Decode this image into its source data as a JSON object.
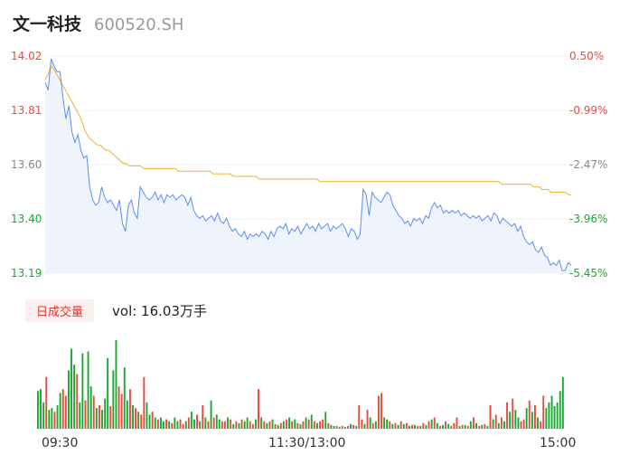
{
  "header": {
    "name": "文一科技",
    "code": "600520.SH"
  },
  "volume_panel": {
    "tab_label": "日成交量",
    "vol_text": "vol: 16.03万手"
  },
  "colors": {
    "price_line": "#5b8ff0",
    "avg_line": "#f0b22c",
    "up": "#e84b3c",
    "down": "#1aa830",
    "area": "#eef3fc",
    "grid": "#e6e6e6"
  },
  "chart_data": [
    {
      "type": "line",
      "y_axis_left": [
        "14.02",
        "13.81",
        "13.60",
        "13.40",
        "13.19"
      ],
      "y_axis_right": [
        "0.50%",
        "-0.99%",
        "-2.47%",
        "-3.96%",
        "-5.45%"
      ],
      "ylim": [
        13.19,
        14.02
      ],
      "x_ticks": [
        "09:30",
        "11:30/13:00",
        "15:00"
      ],
      "series": [
        {
          "values": [
            13.92,
            13.89,
            14.01,
            13.98,
            13.96,
            13.96,
            13.86,
            13.78,
            13.83,
            13.73,
            13.69,
            13.72,
            13.66,
            13.63,
            13.64,
            13.52,
            13.47,
            13.45,
            13.46,
            13.52,
            13.48,
            13.46,
            13.47,
            13.45,
            13.43,
            13.47,
            13.38,
            13.35,
            13.45,
            13.47,
            13.42,
            13.4,
            13.52,
            13.5,
            13.48,
            13.47,
            13.48,
            13.5,
            13.47,
            13.49,
            13.46,
            13.49,
            13.48,
            13.49,
            13.47,
            13.48,
            13.49,
            13.48,
            13.45,
            13.48,
            13.43,
            13.41,
            13.4,
            13.41,
            13.39,
            13.4,
            13.41,
            13.39,
            13.42,
            13.39,
            13.38,
            13.4,
            13.37,
            13.35,
            13.36,
            13.34,
            13.33,
            13.35,
            13.32,
            13.34,
            13.33,
            13.34,
            13.33,
            13.35,
            13.34,
            13.32,
            13.35,
            13.33,
            13.36,
            13.37,
            13.36,
            13.38,
            13.34,
            13.36,
            13.35,
            13.37,
            13.34,
            13.36,
            13.38,
            13.36,
            13.37,
            13.35,
            13.38,
            13.36,
            13.37,
            13.38,
            13.35,
            13.37,
            13.36,
            13.37,
            13.38,
            13.36,
            13.33,
            13.36,
            13.35,
            13.32,
            13.34,
            13.51,
            13.49,
            13.41,
            13.5,
            13.48,
            13.47,
            13.46,
            13.48,
            13.5,
            13.49,
            13.45,
            13.43,
            13.41,
            13.4,
            13.38,
            13.39,
            13.37,
            13.4,
            13.39,
            13.4,
            13.38,
            13.41,
            13.4,
            13.44,
            13.46,
            13.44,
            13.45,
            13.42,
            13.43,
            13.42,
            13.43,
            13.42,
            13.43,
            13.41,
            13.42,
            13.41,
            13.4,
            13.41,
            13.4,
            13.41,
            13.39,
            13.4,
            13.41,
            13.39,
            13.42,
            13.41,
            13.38,
            13.4,
            13.39,
            13.38,
            13.37,
            13.38,
            13.35,
            13.37,
            13.33,
            13.31,
            13.3,
            13.31,
            13.28,
            13.27,
            13.29,
            13.26,
            13.25,
            13.22,
            13.23,
            13.22,
            13.24,
            13.2,
            13.2,
            13.23,
            13.22
          ]
        },
        {
          "values": [
            13.93,
            13.95,
            13.98,
            13.97,
            13.95,
            13.93,
            13.91,
            13.89,
            13.87,
            13.85,
            13.83,
            13.81,
            13.79,
            13.76,
            13.73,
            13.71,
            13.7,
            13.69,
            13.68,
            13.68,
            13.67,
            13.66,
            13.66,
            13.65,
            13.64,
            13.63,
            13.62,
            13.61,
            13.61,
            13.6,
            13.6,
            13.6,
            13.6,
            13.6,
            13.59,
            13.59,
            13.59,
            13.59,
            13.59,
            13.59,
            13.59,
            13.59,
            13.59,
            13.59,
            13.59,
            13.59,
            13.58,
            13.58,
            13.58,
            13.58,
            13.58,
            13.58,
            13.58,
            13.58,
            13.58,
            13.58,
            13.58,
            13.58,
            13.57,
            13.57,
            13.57,
            13.57,
            13.57,
            13.57,
            13.57,
            13.56,
            13.56,
            13.56,
            13.56,
            13.56,
            13.56,
            13.56,
            13.56,
            13.56,
            13.55,
            13.55,
            13.55,
            13.55,
            13.55,
            13.55,
            13.55,
            13.55,
            13.55,
            13.55,
            13.55,
            13.55,
            13.55,
            13.55,
            13.55,
            13.55,
            13.55,
            13.55,
            13.55,
            13.55,
            13.55,
            13.54,
            13.54,
            13.54,
            13.54,
            13.54,
            13.54,
            13.54,
            13.54,
            13.54,
            13.54,
            13.54,
            13.54,
            13.54,
            13.54,
            13.54,
            13.54,
            13.54,
            13.54,
            13.54,
            13.54,
            13.54,
            13.54,
            13.54,
            13.54,
            13.54,
            13.54,
            13.54,
            13.54,
            13.54,
            13.54,
            13.54,
            13.54,
            13.54,
            13.54,
            13.54,
            13.54,
            13.54,
            13.54,
            13.54,
            13.54,
            13.54,
            13.54,
            13.54,
            13.54,
            13.54,
            13.54,
            13.54,
            13.54,
            13.54,
            13.54,
            13.54,
            13.54,
            13.54,
            13.54,
            13.54,
            13.54,
            13.54,
            13.54,
            13.54,
            13.54,
            13.54,
            13.54,
            13.54,
            13.53,
            13.53,
            13.53,
            13.53,
            13.53,
            13.53,
            13.53,
            13.53,
            13.53,
            13.53,
            13.53,
            13.52,
            13.52,
            13.52,
            13.51,
            13.51,
            13.51,
            13.5,
            13.5,
            13.5,
            13.5,
            13.5,
            13.5,
            13.49,
            13.49
          ]
        }
      ]
    },
    {
      "type": "bar",
      "x_ticks": [
        "09:30",
        "11:30/13:00",
        "15:00"
      ],
      "values": [
        40,
        42,
        28,
        55,
        20,
        22,
        18,
        25,
        38,
        42,
        35,
        62,
        85,
        68,
        58,
        28,
        80,
        30,
        82,
        45,
        35,
        22,
        25,
        20,
        32,
        75,
        24,
        62,
        94,
        45,
        37,
        65,
        30,
        42,
        25,
        22,
        18,
        15,
        55,
        28,
        15,
        18,
        12,
        10,
        12,
        8,
        10,
        8,
        6,
        12,
        8,
        10,
        5,
        8,
        12,
        18,
        10,
        15,
        8,
        25,
        12,
        8,
        30,
        12,
        15,
        10,
        8,
        8,
        12,
        10,
        5,
        8,
        6,
        10,
        8,
        12,
        8,
        5,
        10,
        42,
        12,
        8,
        6,
        8,
        10,
        5,
        4,
        6,
        8,
        10,
        12,
        8,
        10,
        6,
        5,
        8,
        12,
        10,
        15,
        8,
        6,
        8,
        10,
        18,
        6,
        4,
        3,
        3,
        2,
        3,
        2,
        3,
        5,
        4,
        3,
        25,
        10,
        5,
        20,
        12,
        6,
        8,
        35,
        38,
        12,
        10,
        8,
        5,
        6,
        4,
        8,
        5,
        6,
        3,
        4,
        4,
        3,
        3,
        6,
        4,
        8,
        10,
        12,
        6,
        3,
        4,
        8,
        5,
        3,
        6,
        12,
        3,
        4,
        4,
        3,
        8,
        12,
        6,
        3,
        4,
        5,
        3,
        25,
        10,
        15,
        6,
        12,
        8,
        28,
        18,
        32,
        20,
        12,
        8,
        10,
        22,
        30,
        18,
        25,
        12,
        8,
        35,
        22,
        28,
        35,
        24,
        28,
        40,
        55
      ],
      "colors": [
        "d",
        "d",
        "d",
        "u",
        "d",
        "d",
        "u",
        "d",
        "d",
        "u",
        "u",
        "d",
        "d",
        "d",
        "u",
        "d",
        "d",
        "u",
        "d",
        "d",
        "u",
        "d",
        "u",
        "d",
        "d",
        "d",
        "u",
        "d",
        "d",
        "u",
        "u",
        "d",
        "d",
        "u",
        "d",
        "u",
        "d",
        "u",
        "u",
        "d",
        "d",
        "u",
        "d",
        "u",
        "d",
        "d",
        "u",
        "d",
        "u",
        "d",
        "d",
        "u",
        "u",
        "d",
        "u",
        "d",
        "d",
        "u",
        "d",
        "u",
        "d",
        "u",
        "d",
        "u",
        "d",
        "d",
        "u",
        "u",
        "d",
        "u",
        "d",
        "u",
        "d",
        "u",
        "d",
        "d",
        "u",
        "u",
        "d",
        "u",
        "d",
        "u",
        "d",
        "u",
        "d",
        "u",
        "d",
        "u",
        "d",
        "u",
        "d",
        "u",
        "d",
        "u",
        "d",
        "u",
        "d",
        "u",
        "d",
        "u",
        "d",
        "u",
        "u",
        "d",
        "u",
        "d",
        "d",
        "u",
        "d",
        "u",
        "d",
        "u",
        "d",
        "u",
        "d",
        "u",
        "u",
        "d",
        "u",
        "d",
        "u",
        "d",
        "u",
        "u",
        "d",
        "d",
        "u",
        "d",
        "u",
        "d",
        "u",
        "d",
        "u",
        "d",
        "u",
        "d",
        "u",
        "d",
        "u",
        "d",
        "u",
        "d",
        "u",
        "d",
        "u",
        "d",
        "u",
        "d",
        "u",
        "u",
        "u",
        "d",
        "u",
        "d",
        "u",
        "d",
        "u",
        "d",
        "u",
        "d",
        "u",
        "d",
        "u",
        "d",
        "u",
        "d",
        "u",
        "d",
        "u",
        "d",
        "u",
        "d",
        "d",
        "u",
        "u",
        "d",
        "u",
        "d",
        "u",
        "d",
        "u",
        "u",
        "d"
      ]
    }
  ]
}
